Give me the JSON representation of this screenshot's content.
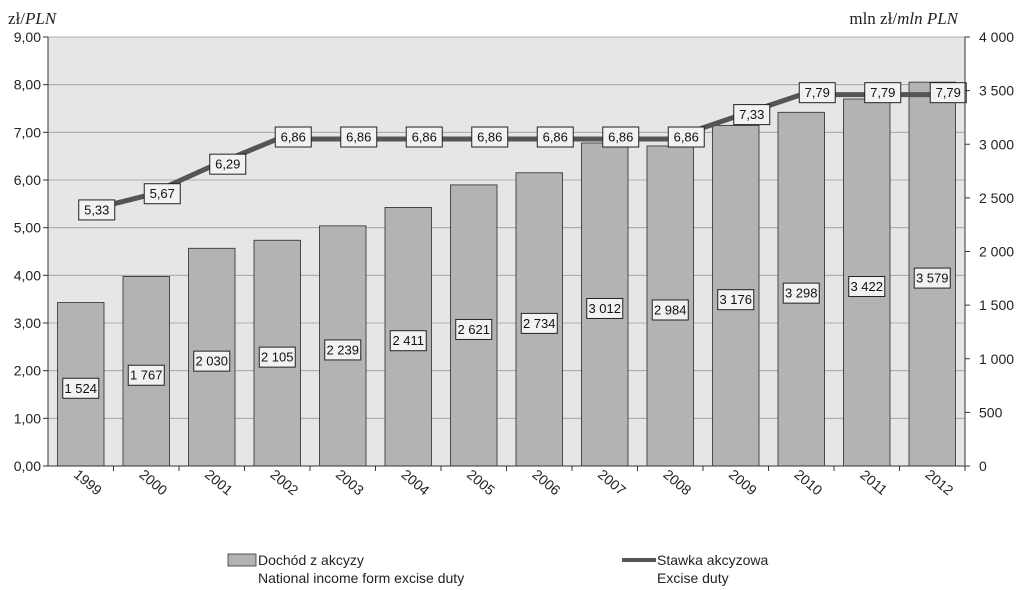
{
  "chart_data": {
    "type": "bar",
    "categories": [
      "1999",
      "2000",
      "2001",
      "2002",
      "2003",
      "2004",
      "2005",
      "2006",
      "2007",
      "2008",
      "2009",
      "2010",
      "2011",
      "2012"
    ],
    "y_left": {
      "unit_label_pl": "zł/",
      "unit_label_en": "PLN",
      "ylim": [
        0,
        9
      ],
      "ticks": [
        "0,00",
        "1,00",
        "2,00",
        "3,00",
        "4,00",
        "5,00",
        "6,00",
        "7,00",
        "8,00",
        "9,00"
      ]
    },
    "y_right": {
      "unit_label_pl": "mln zł/",
      "unit_label_en": "mln PLN",
      "ylim": [
        0,
        4000
      ],
      "ticks": [
        "0",
        "500",
        "1 000",
        "1 500",
        "2 000",
        "2 500",
        "3 000",
        "3 500",
        "4 000"
      ]
    },
    "series": [
      {
        "name_pl": "Dochód z akcyzy",
        "name_en": "National income form excise duty",
        "kind": "bar",
        "axis": "right",
        "color": "#b3b3b3",
        "values": [
          1524,
          1767,
          2030,
          2105,
          2239,
          2411,
          2621,
          2734,
          3012,
          2984,
          3176,
          3298,
          3422,
          3579
        ],
        "labels": [
          "1 524",
          "1 767",
          "2 030",
          "2 105",
          "2 239",
          "2 411",
          "2 621",
          "2 734",
          "3 012",
          "2 984",
          "3 176",
          "3 298",
          "3 422",
          "3 579"
        ]
      },
      {
        "name_pl": "Stawka akcyzowa",
        "name_en": "Excise duty",
        "kind": "line",
        "axis": "left",
        "color": "#555555",
        "values": [
          5.33,
          5.67,
          6.29,
          6.86,
          6.86,
          6.86,
          6.86,
          6.86,
          6.86,
          6.86,
          7.33,
          7.79,
          7.79,
          7.79
        ],
        "labels": [
          "5,33",
          "5,67",
          "6,29",
          "6,86",
          "6,86",
          "6,86",
          "6,86",
          "6,86",
          "6,86",
          "6,86",
          "7,33",
          "7,79",
          "7,79",
          "7,79"
        ]
      }
    ],
    "grid": true,
    "plot_background": "#e6e6e6",
    "legend": "bottom"
  }
}
